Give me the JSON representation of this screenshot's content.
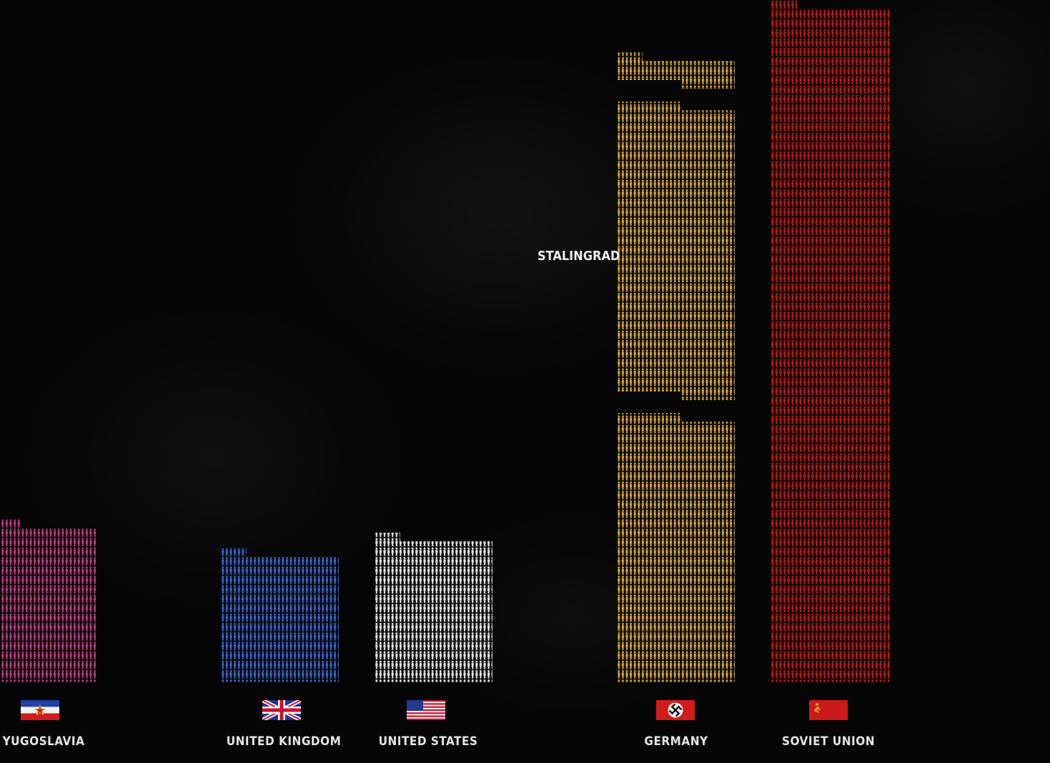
{
  "chart_data": {
    "type": "bar",
    "style": "pictogram (soldier icons)",
    "title": "",
    "xlabel": "",
    "ylabel": "",
    "categories": [
      "Yugoslavia",
      "United Kingdom",
      "United States",
      "Germany",
      "Soviet Union"
    ],
    "values": [
      310,
      255,
      285,
      1200,
      1300
    ],
    "colors": [
      "#b8397f",
      "#3a63c9",
      "#e6e6e6",
      "#d2a23c",
      "#bf1616"
    ],
    "annotations": [
      {
        "text": "Stalingrad",
        "category": "Germany"
      }
    ],
    "ylim": [
      0,
      1300
    ],
    "grid": false,
    "legend": "none"
  },
  "flags": [
    {
      "country": "Yugoslavia",
      "icon": "yugoslavia-flag-icon"
    },
    {
      "country": "United Kingdom",
      "icon": "uk-flag-icon"
    },
    {
      "country": "United States",
      "icon": "us-flag-icon"
    },
    {
      "country": "Germany",
      "icon": "germany-flag-icon"
    },
    {
      "country": "Soviet Union",
      "icon": "soviet-flag-icon"
    }
  ]
}
